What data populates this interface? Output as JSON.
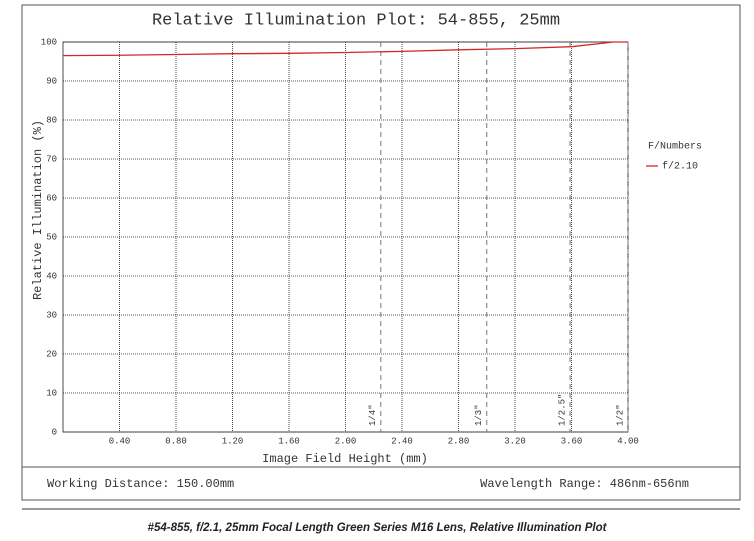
{
  "chart_data": {
    "type": "line",
    "title": "Relative Illumination Plot: 54-855, 25mm",
    "x_label": "Image Field Height (mm)",
    "y_label": "Relative Illumination (%)",
    "legend_title": "F/Numbers",
    "series": [
      {
        "name": "f/2.10",
        "color": "#d62728",
        "x": [
          0,
          0.4,
          0.8,
          1.2,
          1.6,
          2.0,
          2.4,
          2.8,
          3.2,
          3.6,
          3.9,
          4.0
        ],
        "values": [
          96.5,
          96.6,
          96.8,
          97,
          97.1,
          97.3,
          97.6,
          98,
          98.3,
          98.8,
          100,
          100
        ]
      }
    ],
    "xlim": [
      0,
      4
    ],
    "xticks": [
      {
        "value": 0.4,
        "label": "0.40"
      },
      {
        "value": 0.8,
        "label": "0.80"
      },
      {
        "value": 1.2,
        "label": "1.20"
      },
      {
        "value": 1.6,
        "label": "1.60"
      },
      {
        "value": 2.0,
        "label": "2.00"
      },
      {
        "value": 2.4,
        "label": "2.40"
      },
      {
        "value": 2.8,
        "label": "2.80"
      },
      {
        "value": 3.2,
        "label": "3.20"
      },
      {
        "value": 3.6,
        "label": "3.60"
      },
      {
        "value": 4.0,
        "label": "4.00"
      }
    ],
    "ylim": [
      0,
      100
    ],
    "yticks": [
      0,
      10,
      20,
      30,
      40,
      50,
      60,
      70,
      80,
      90,
      100
    ],
    "grid": true,
    "sensor_formats": [
      {
        "label": "1/4\"",
        "x": 2.25
      },
      {
        "label": "1/3\"",
        "x": 3.0
      },
      {
        "label": "1/2.5\"",
        "x": 3.59
      },
      {
        "label": "1/2\"",
        "x": 4.0
      }
    ]
  },
  "footer": {
    "working_distance": "Working Distance: 150.00mm",
    "wavelength_range": "Wavelength Range: 486nm-656nm"
  },
  "caption": "#54-855, f/2.1, 25mm Focal Length Green Series M16 Lens, Relative Illumination Plot"
}
